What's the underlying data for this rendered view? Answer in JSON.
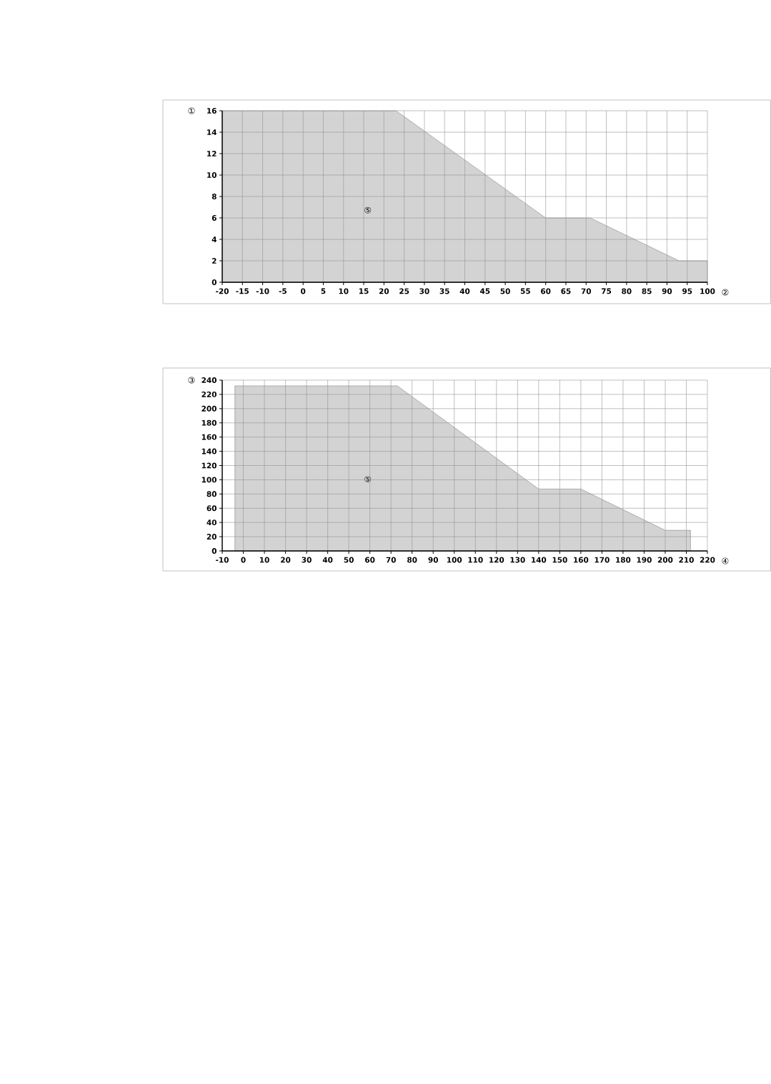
{
  "chart_data": [
    {
      "type": "area",
      "ylabel": "①",
      "xlabel": "②",
      "x": [
        -20,
        23,
        60,
        71,
        93,
        100
      ],
      "values": [
        16,
        16,
        6,
        6,
        2,
        2
      ],
      "color": "#d3d3d3",
      "xlim": [
        -20,
        100
      ],
      "ylim": [
        0,
        16
      ],
      "xticks": [
        -20,
        -15,
        -10,
        -5,
        0,
        5,
        10,
        15,
        20,
        25,
        30,
        35,
        40,
        45,
        50,
        55,
        60,
        65,
        70,
        75,
        80,
        85,
        90,
        95,
        100
      ],
      "yticks": [
        0,
        2,
        4,
        6,
        8,
        10,
        12,
        14,
        16
      ],
      "grid": true,
      "annotations": [
        "⑤"
      ]
    },
    {
      "type": "area",
      "ylabel": "③",
      "xlabel": "④",
      "x": [
        -4,
        73,
        140,
        160,
        200,
        212
      ],
      "values": [
        232,
        232,
        87,
        87,
        29,
        29
      ],
      "color": "#d3d3d3",
      "xlim": [
        -10,
        220
      ],
      "ylim": [
        0,
        240
      ],
      "xticks": [
        -10,
        0,
        10,
        20,
        30,
        40,
        50,
        60,
        70,
        80,
        90,
        100,
        110,
        120,
        130,
        140,
        150,
        160,
        170,
        180,
        190,
        200,
        210,
        220
      ],
      "yticks": [
        0,
        20,
        40,
        60,
        80,
        100,
        120,
        140,
        160,
        180,
        200,
        220,
        240
      ],
      "grid": true,
      "annotations": [
        "⑤"
      ]
    }
  ]
}
